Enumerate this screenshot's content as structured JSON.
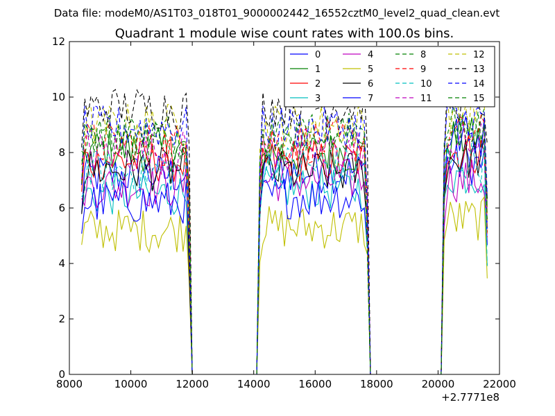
{
  "header": {
    "data_file_label": "Data file: modeM0/AS1T03_018T01_9000002442_16552cztM0_level2_quad_clean.evt"
  },
  "chart_data": {
    "type": "line",
    "title": "Quadrant 1 module wise count rates with 100.0s bins.",
    "xlabel": "",
    "ylabel": "",
    "xlim": [
      8000,
      22000
    ],
    "ylim": [
      0,
      12
    ],
    "x_offset_label": "+2.7771e8",
    "x_ticks": [
      8000,
      10000,
      12000,
      14000,
      16000,
      18000,
      20000,
      22000
    ],
    "x_tick_labels": [
      "8000",
      "10000",
      "12000",
      "14000",
      "16000",
      "18000",
      "20000",
      "22000"
    ],
    "y_ticks": [
      0,
      2,
      4,
      6,
      8,
      10,
      12
    ],
    "y_tick_labels": [
      "0",
      "2",
      "4",
      "6",
      "8",
      "10",
      "12"
    ],
    "grid": false,
    "legend_position": "top-right",
    "bin_width_s": 100,
    "segments": [
      {
        "start": 8400,
        "end": 11900
      },
      {
        "start": 14200,
        "end": 17700
      },
      {
        "start": 20200,
        "end": 21600
      }
    ],
    "series": [
      {
        "name": "0",
        "color": "#0000ff",
        "dash": "solid",
        "s1": 7.2,
        "s2": 7.3,
        "s3": 7.6
      },
      {
        "name": "1",
        "color": "#008000",
        "dash": "solid",
        "s1": 8.1,
        "s2": 8.0,
        "s3": 8.5
      },
      {
        "name": "2",
        "color": "#ff0000",
        "dash": "solid",
        "s1": 7.7,
        "s2": 7.7,
        "s3": 8.0
      },
      {
        "name": "3",
        "color": "#00bfbf",
        "dash": "solid",
        "s1": 6.5,
        "s2": 6.7,
        "s3": 7.2
      },
      {
        "name": "4",
        "color": "#bf00bf",
        "dash": "solid",
        "s1": 6.8,
        "s2": 7.0,
        "s3": 7.0
      },
      {
        "name": "5",
        "color": "#bfbf00",
        "dash": "solid",
        "s1": 5.2,
        "s2": 5.3,
        "s3": 5.6
      },
      {
        "name": "6",
        "color": "#000000",
        "dash": "solid",
        "s1": 7.4,
        "s2": 7.3,
        "s3": 7.8
      },
      {
        "name": "7",
        "color": "#0000ff",
        "dash": "solid",
        "s1": 6.2,
        "s2": 6.4,
        "s3": 8.6
      },
      {
        "name": "8",
        "color": "#008000",
        "dash": "dashed",
        "s1": 8.7,
        "s2": 8.7,
        "s3": 9.0
      },
      {
        "name": "9",
        "color": "#ff0000",
        "dash": "dashed",
        "s1": 8.3,
        "s2": 8.4,
        "s3": 8.6
      },
      {
        "name": "10",
        "color": "#00bfbf",
        "dash": "dashed",
        "s1": 7.3,
        "s2": 7.5,
        "s3": 7.7
      },
      {
        "name": "11",
        "color": "#bf00bf",
        "dash": "dashed",
        "s1": 8.0,
        "s2": 8.1,
        "s3": 8.3
      },
      {
        "name": "12",
        "color": "#bfbf00",
        "dash": "dashed",
        "s1": 9.0,
        "s2": 9.0,
        "s3": 9.5
      },
      {
        "name": "13",
        "color": "#000000",
        "dash": "dashed",
        "s1": 9.6,
        "s2": 9.7,
        "s3": 9.9
      },
      {
        "name": "14",
        "color": "#0000ff",
        "dash": "dashed",
        "s1": 8.9,
        "s2": 8.9,
        "s3": 9.2
      },
      {
        "name": "15",
        "color": "#008000",
        "dash": "dashed",
        "s1": 8.4,
        "s2": 8.4,
        "s3": 8.8
      }
    ]
  }
}
